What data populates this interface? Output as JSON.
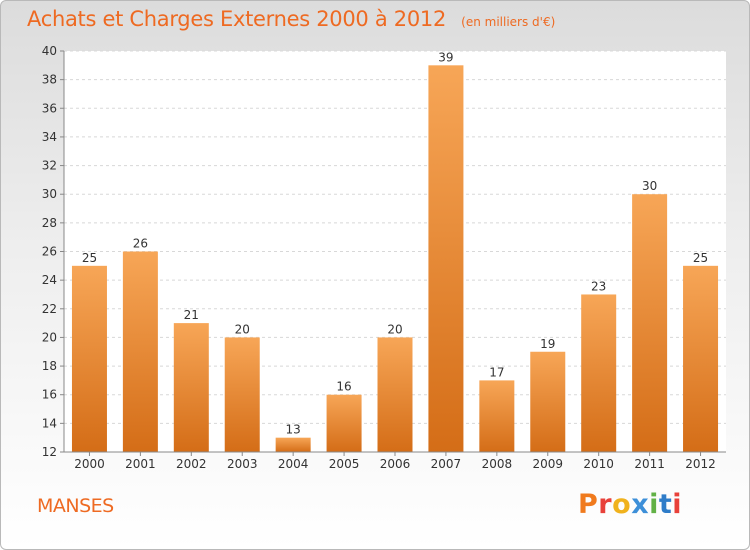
{
  "header": {
    "title": "Achats et Charges Externes 2000 à 2012",
    "unit": "(en milliers d'€)"
  },
  "footer": {
    "town": "MANSES",
    "logo": "Proxiti",
    "logo_colors": [
      "#f07a1d",
      "#e8413a",
      "#f0b21d",
      "#3d8fd8",
      "#62b146",
      "#2e7cc8",
      "#e8413a"
    ]
  },
  "colors": {
    "accent": "#ee6a22",
    "bar_top": "#f7a657",
    "bar_bottom": "#d46d17"
  },
  "chart_data": {
    "type": "bar",
    "categories": [
      "2000",
      "2001",
      "2002",
      "2003",
      "2004",
      "2005",
      "2006",
      "2007",
      "2008",
      "2009",
      "2010",
      "2011",
      "2012"
    ],
    "values": [
      25,
      26,
      21,
      20,
      13,
      16,
      20,
      39,
      17,
      19,
      23,
      30,
      25
    ],
    "ylim": [
      12,
      40
    ],
    "yticks": [
      12,
      14,
      16,
      18,
      20,
      22,
      24,
      26,
      28,
      30,
      32,
      34,
      36,
      38,
      40
    ],
    "grid": true
  }
}
